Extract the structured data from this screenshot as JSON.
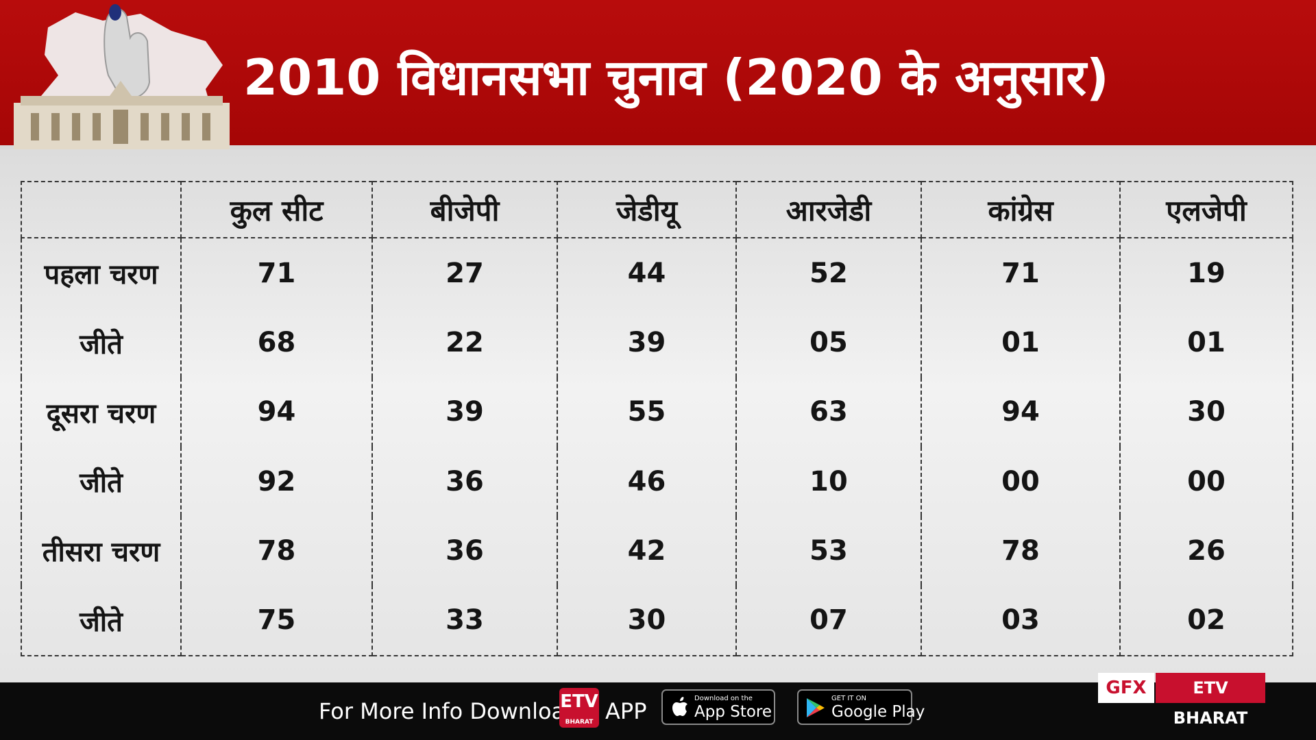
{
  "header": {
    "title": "2010 विधानसभा चुनाव  (2020 के अनुसार)"
  },
  "chart_data": {
    "type": "table",
    "columns": [
      "",
      "कुल सीट",
      "बीजेपी",
      "जेडीयू",
      "आरजेडी",
      "कांग्रेस",
      "एलजेपी"
    ],
    "rows": [
      {
        "label": "पहला चरण",
        "values": [
          "71",
          "27",
          "44",
          "52",
          "71",
          "19"
        ]
      },
      {
        "label": "जीते",
        "values": [
          "68",
          "22",
          "39",
          "05",
          "01",
          "01"
        ]
      },
      {
        "label": "दूसरा चरण",
        "values": [
          "94",
          "39",
          "55",
          "63",
          "94",
          "30"
        ]
      },
      {
        "label": "जीते",
        "values": [
          "92",
          "36",
          "46",
          "10",
          "00",
          "00"
        ]
      },
      {
        "label": "तीसरा चरण",
        "values": [
          "78",
          "36",
          "42",
          "53",
          "78",
          "26"
        ]
      },
      {
        "label": "जीते",
        "values": [
          "75",
          "33",
          "30",
          "07",
          "03",
          "02"
        ]
      }
    ]
  },
  "footer": {
    "info_text": "For More Info Download",
    "etv_logo": "ETV",
    "etv_logo_sub": "BHARAT",
    "app_label": "APP",
    "appstore_small": "Download on the",
    "appstore_big": "App Store",
    "googleplay_small": "GET IT ON",
    "googleplay_big": "Google Play",
    "apple_icon": "apple-icon",
    "play_icon": "play-icon"
  },
  "badge": {
    "gfx": "GFX",
    "brand": "ETV BHARAT"
  },
  "colors": {
    "header_red": "#a50606",
    "accent_red": "#c8102e",
    "footer_black": "#0b0b0b"
  }
}
